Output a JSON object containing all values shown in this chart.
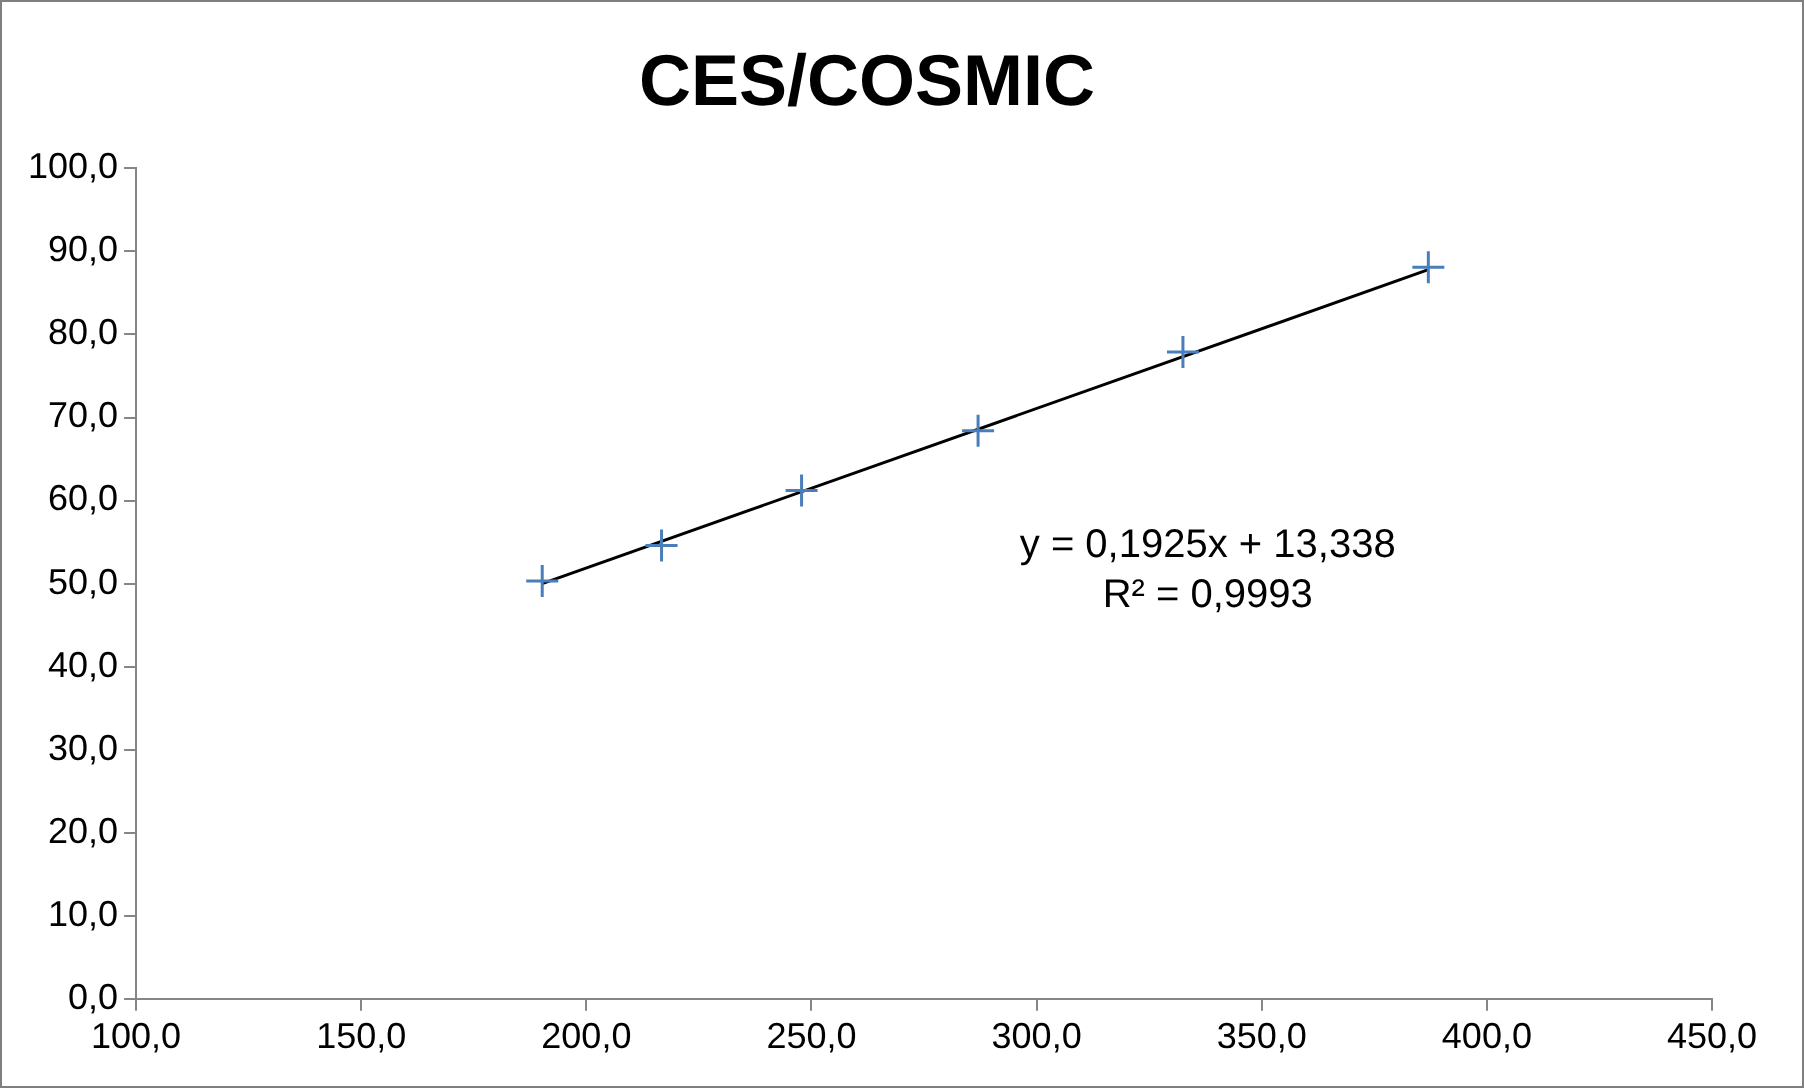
{
  "chart_data": {
    "type": "scatter",
    "title": "CES/COSMIC",
    "grid": false,
    "legend": false,
    "series": [
      {
        "type": "scatter",
        "marker": "cross",
        "color": "#4a7ebb",
        "x": [
          190.2,
          216.7,
          247.8,
          287.0,
          332.5,
          387.0
        ],
        "values": [
          50.3,
          54.6,
          61.2,
          68.4,
          77.9,
          88.1
        ]
      },
      {
        "type": "line",
        "marker": "none",
        "color": "#000000",
        "x": [
          190.2,
          387.0
        ],
        "values": [
          50.0,
          87.8
        ]
      }
    ],
    "xlim": [
      100,
      450
    ],
    "xticks": [
      {
        "value": 100,
        "label": "100,0"
      },
      {
        "value": 150,
        "label": "150,0"
      },
      {
        "value": 200,
        "label": "200,0"
      },
      {
        "value": 250,
        "label": "250,0"
      },
      {
        "value": 300,
        "label": "300,0"
      },
      {
        "value": 350,
        "label": "350,0"
      },
      {
        "value": 400,
        "label": "400,0"
      },
      {
        "value": 450,
        "label": "450,0"
      }
    ],
    "ylim": [
      0,
      100
    ],
    "yticks": [
      {
        "value": 0,
        "label": "0,0"
      },
      {
        "value": 10,
        "label": "10,0"
      },
      {
        "value": 20,
        "label": "20,0"
      },
      {
        "value": 30,
        "label": "30,0"
      },
      {
        "value": 40,
        "label": "40,0"
      },
      {
        "value": 50,
        "label": "50,0"
      },
      {
        "value": 60,
        "label": "60,0"
      },
      {
        "value": 70,
        "label": "70,0"
      },
      {
        "value": 80,
        "label": "80,0"
      },
      {
        "value": 90,
        "label": "90,0"
      },
      {
        "value": 100,
        "label": "100,0"
      }
    ],
    "annotations": [
      "y = 0,1925x + 13,338",
      "R² = 0,9993"
    ]
  }
}
